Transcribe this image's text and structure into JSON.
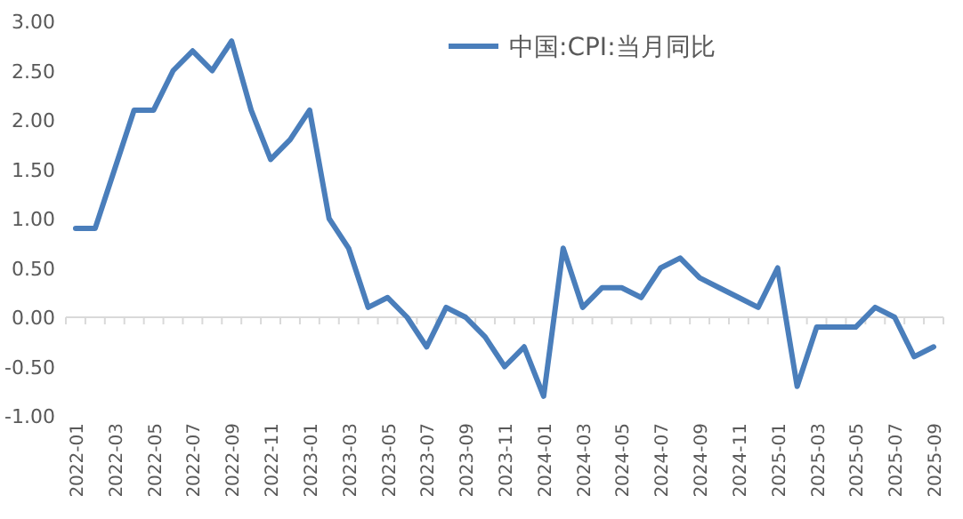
{
  "chart_data": {
    "type": "line",
    "legend": "top",
    "categories": [
      "2022-01",
      null,
      "2022-03",
      null,
      "2022-05",
      null,
      "2022-07",
      null,
      "2022-09",
      null,
      "2022-11",
      null,
      "2023-01",
      null,
      "2023-03",
      null,
      "2023-05",
      null,
      "2023-07",
      null,
      "2023-09",
      null,
      "2023-11",
      null,
      "2024-01",
      null,
      "2024-03",
      null,
      "2024-05",
      null,
      "2024-07",
      null,
      "2024-09",
      null,
      "2024-11",
      null,
      "2025-01",
      null,
      "2025-03",
      null,
      "2025-05",
      null,
      "2025-07",
      null,
      "2025-09"
    ],
    "series": [
      {
        "name": "中国:CPI:当月同比",
        "color": "#4a7ebb",
        "values": [
          0.9,
          0.9,
          1.5,
          2.1,
          2.1,
          2.5,
          2.7,
          2.5,
          2.8,
          2.1,
          1.6,
          1.8,
          2.1,
          1.0,
          0.7,
          0.1,
          0.2,
          0.0,
          -0.3,
          0.1,
          0.0,
          -0.2,
          -0.5,
          -0.3,
          -0.8,
          0.7,
          0.1,
          0.3,
          0.3,
          0.2,
          0.5,
          0.6,
          0.4,
          0.3,
          0.2,
          0.1,
          0.5,
          -0.7,
          -0.1,
          -0.1,
          -0.1,
          0.1,
          0.0,
          -0.4,
          -0.3
        ]
      }
    ],
    "ylim": [
      -1,
      3
    ],
    "yticks": [
      {
        "value": -1,
        "label": "-1.00"
      },
      {
        "value": -0.5,
        "label": "-0.50"
      },
      {
        "value": 0,
        "label": "0.00"
      },
      {
        "value": 0.5,
        "label": "0.50"
      },
      {
        "value": 1,
        "label": "1.00"
      },
      {
        "value": 1.5,
        "label": "1.50"
      },
      {
        "value": 2,
        "label": "2.00"
      },
      {
        "value": 2.5,
        "label": "2.50"
      },
      {
        "value": 3,
        "label": "3.00"
      }
    ]
  }
}
